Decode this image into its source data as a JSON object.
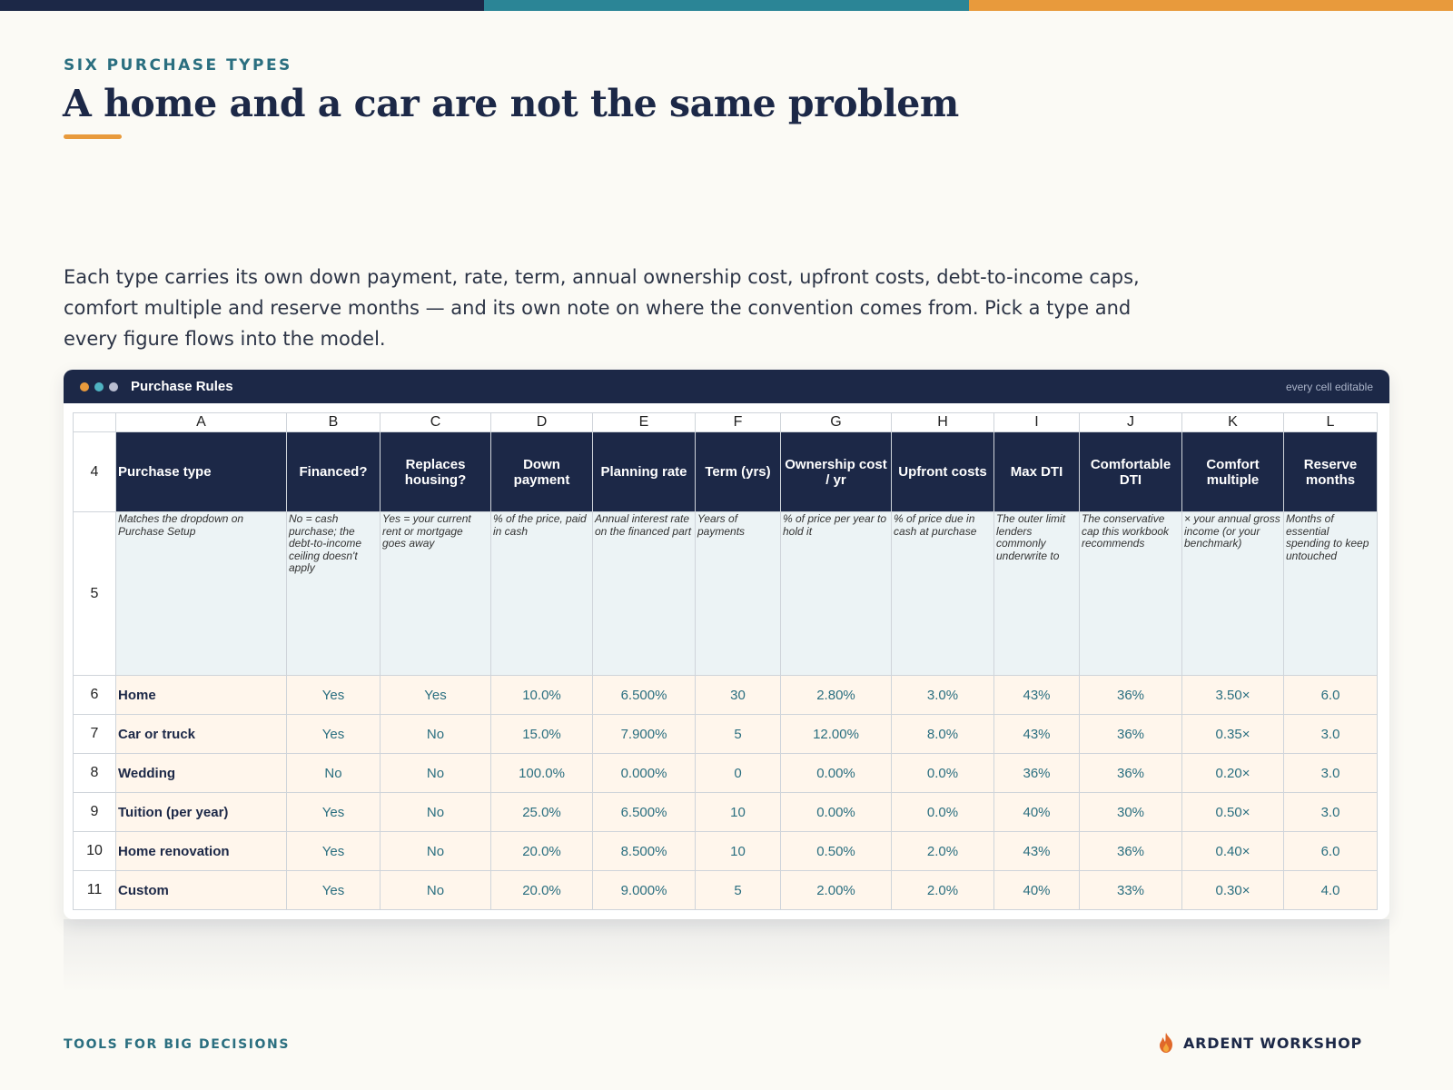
{
  "colors": {
    "navy": "#1c2847",
    "teal": "#2b8596",
    "orange": "#e89a3c",
    "dot_orange": "#e89a3c",
    "dot_teal": "#4fb3c2",
    "dot_grey": "#b9bdd0"
  },
  "eyebrow": "SIX PURCHASE TYPES",
  "title": "A home and a car are not the same problem",
  "intro": "Each type carries its own down payment, rate, term, annual ownership cost, upfront costs, debt-to-income caps, comfort multiple and reserve months — and its own note on where the convention comes from. Pick a type and every figure flows into the model.",
  "window": {
    "title": "Purchase Rules",
    "badge": "every cell editable"
  },
  "sheet": {
    "columns": [
      "A",
      "B",
      "C",
      "D",
      "E",
      "F",
      "G",
      "H",
      "I",
      "J",
      "K",
      "L"
    ],
    "header_row": "4",
    "headers": [
      "Purchase type",
      "Financed?",
      "Replaces housing?",
      "Down payment",
      "Planning rate",
      "Term (yrs)",
      "Ownership cost / yr",
      "Upfront costs",
      "Max DTI",
      "Comfortable DTI",
      "Comfort multiple",
      "Reserve months"
    ],
    "desc_row": "5",
    "descriptions": [
      "Matches the dropdown on Purchase Setup",
      "No = cash purchase; the debt-to-income ceiling doesn't apply",
      "Yes = your current rent or mortgage goes away",
      "% of the price, paid in cash",
      "Annual interest rate on the financed part",
      "Years of payments",
      "% of price per year to hold it",
      "% of price due in cash at purchase",
      "The outer limit lenders commonly underwrite to",
      "The conservative cap this workbook recommends",
      "× your annual gross income (or your benchmark)",
      "Months of essential spending to keep untouched"
    ],
    "rows": [
      {
        "num": "6",
        "cells": [
          "Home",
          "Yes",
          "Yes",
          "10.0%",
          "6.500%",
          "30",
          "2.80%",
          "3.0%",
          "43%",
          "36%",
          "3.50×",
          "6.0"
        ]
      },
      {
        "num": "7",
        "cells": [
          "Car or truck",
          "Yes",
          "No",
          "15.0%",
          "7.900%",
          "5",
          "12.00%",
          "8.0%",
          "43%",
          "36%",
          "0.35×",
          "3.0"
        ]
      },
      {
        "num": "8",
        "cells": [
          "Wedding",
          "No",
          "No",
          "100.0%",
          "0.000%",
          "0",
          "0.00%",
          "0.0%",
          "36%",
          "36%",
          "0.20×",
          "3.0"
        ]
      },
      {
        "num": "9",
        "cells": [
          "Tuition (per year)",
          "Yes",
          "No",
          "25.0%",
          "6.500%",
          "10",
          "0.00%",
          "0.0%",
          "40%",
          "30%",
          "0.50×",
          "3.0"
        ]
      },
      {
        "num": "10",
        "cells": [
          "Home renovation",
          "Yes",
          "No",
          "20.0%",
          "8.500%",
          "10",
          "0.50%",
          "2.0%",
          "43%",
          "36%",
          "0.40×",
          "6.0"
        ]
      },
      {
        "num": "11",
        "cells": [
          "Custom",
          "Yes",
          "No",
          "20.0%",
          "9.000%",
          "5",
          "2.00%",
          "2.0%",
          "40%",
          "33%",
          "0.30×",
          "4.0"
        ]
      }
    ]
  },
  "footer": {
    "left": "TOOLS FOR BIG DECISIONS",
    "brand": "ARDENT WORKSHOP",
    "logo_icon": "flame-icon"
  }
}
